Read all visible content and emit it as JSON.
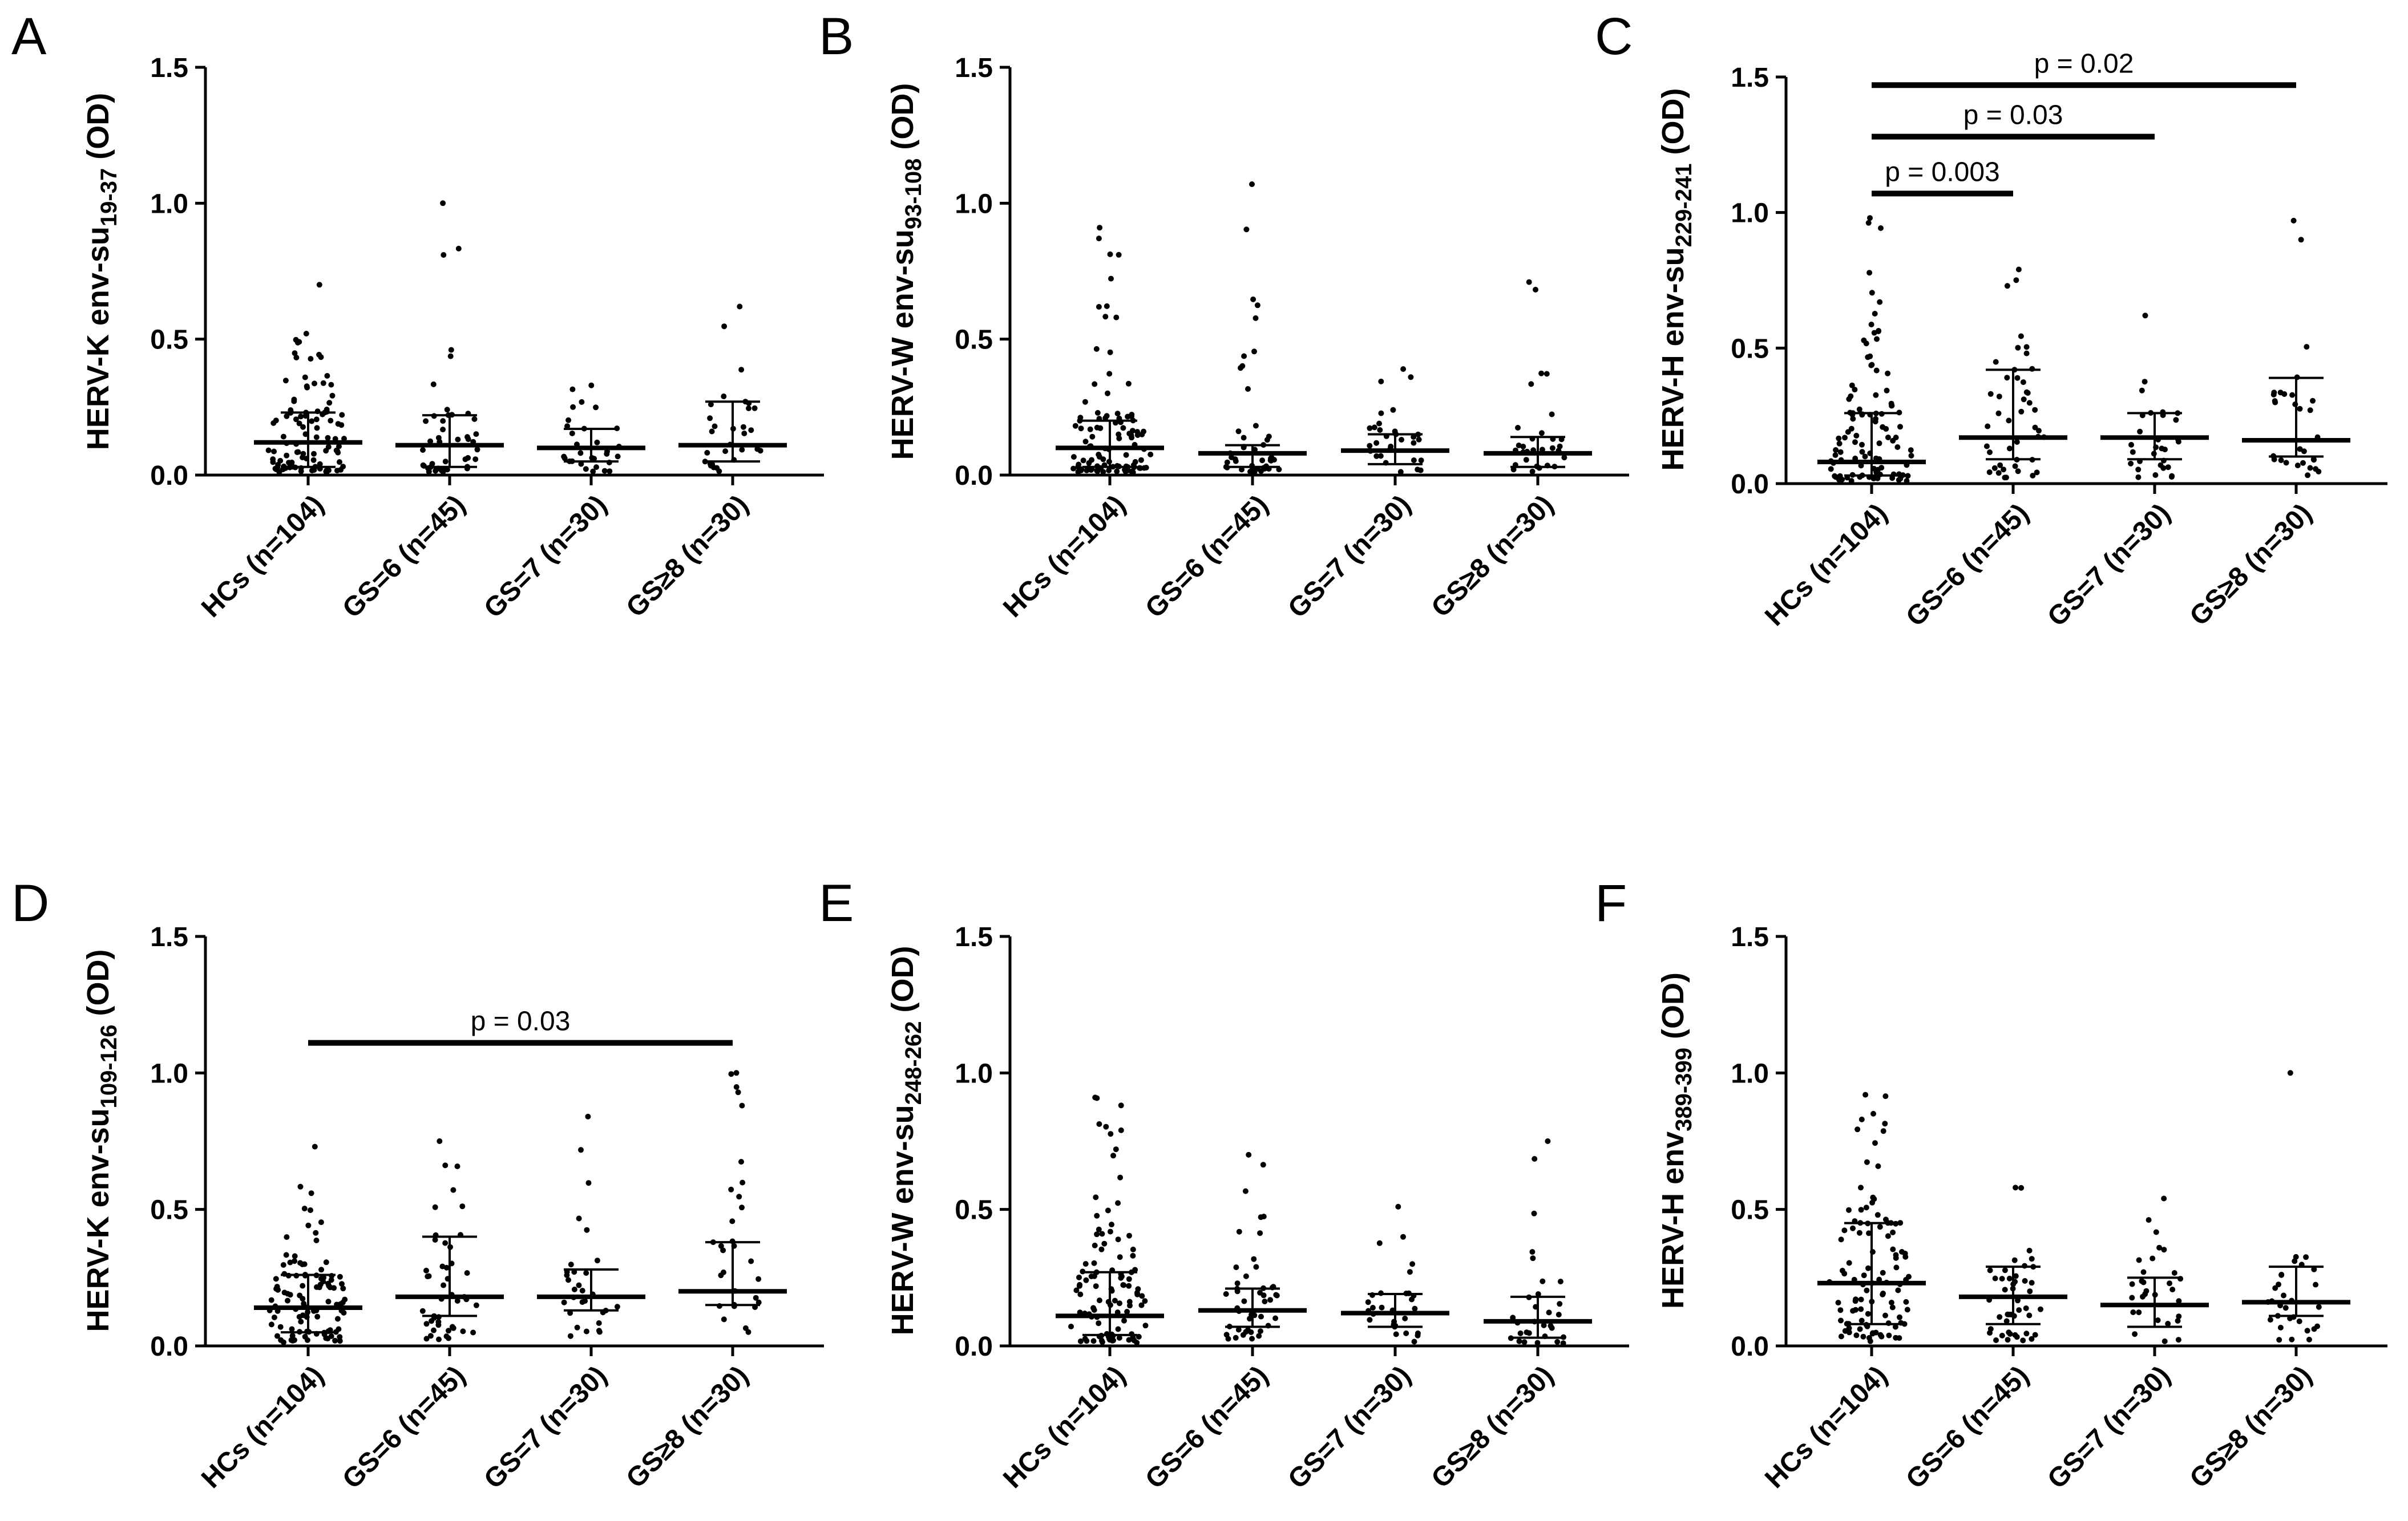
{
  "figure": {
    "background": "#ffffff",
    "ink": "#000000"
  },
  "chart_data": [
    {
      "panel": "A",
      "type": "scatter",
      "ylabel": "HERV-K env-su19-37 (OD)",
      "ylabel_parts": {
        "pre": "HERV-K env-su",
        "sub": "19-37",
        "post": " (OD)"
      },
      "ylim": [
        0,
        1.5
      ],
      "yticks": [
        0.0,
        0.5,
        1.0,
        1.5
      ],
      "ytick_labels": [
        "0.0",
        "0.5",
        "1.0",
        "1.5"
      ],
      "categories": [
        "HCs (n=104)",
        "GS=6 (n=45)",
        "GS=7 (n=30)",
        "GS≥8 (n=30)"
      ],
      "series": [
        {
          "name": "HCs (n=104)",
          "n": 104,
          "median": 0.12,
          "q1": 0.03,
          "q3": 0.23,
          "max": 0.7
        },
        {
          "name": "GS=6 (n=45)",
          "n": 45,
          "median": 0.11,
          "q1": 0.03,
          "q3": 0.22,
          "max": 1.0
        },
        {
          "name": "GS=7 (n=30)",
          "n": 30,
          "median": 0.1,
          "q1": 0.05,
          "q3": 0.17,
          "max": 0.33
        },
        {
          "name": "GS≥8 (n=30)",
          "n": 30,
          "median": 0.11,
          "q1": 0.05,
          "q3": 0.27,
          "max": 0.62
        }
      ],
      "comparisons": []
    },
    {
      "panel": "B",
      "type": "scatter",
      "ylabel": "HERV-W env-su93-108 (OD)",
      "ylabel_parts": {
        "pre": "HERV-W env-su",
        "sub": "93-108",
        "post": " (OD)"
      },
      "ylim": [
        0,
        1.5
      ],
      "yticks": [
        0.0,
        0.5,
        1.0,
        1.5
      ],
      "ytick_labels": [
        "0.0",
        "0.5",
        "1.0",
        "1.5"
      ],
      "categories": [
        "HCs (n=104)",
        "GS=6 (n=45)",
        "GS=7 (n=30)",
        "GS≥8 (n=30)"
      ],
      "series": [
        {
          "name": "HCs (n=104)",
          "n": 104,
          "median": 0.1,
          "q1": 0.03,
          "q3": 0.2,
          "max": 0.91
        },
        {
          "name": "GS=6 (n=45)",
          "n": 45,
          "median": 0.08,
          "q1": 0.03,
          "q3": 0.11,
          "max": 1.07
        },
        {
          "name": "GS=7 (n=30)",
          "n": 30,
          "median": 0.09,
          "q1": 0.04,
          "q3": 0.15,
          "max": 0.39
        },
        {
          "name": "GS≥8 (n=30)",
          "n": 30,
          "median": 0.08,
          "q1": 0.03,
          "q3": 0.14,
          "max": 0.71
        }
      ],
      "comparisons": []
    },
    {
      "panel": "C",
      "type": "scatter",
      "ylabel": "HERV-H env-su229-241 (OD)",
      "ylabel_parts": {
        "pre": "HERV-H env-su",
        "sub": "229-241",
        "post": " (OD)"
      },
      "ylim": [
        0,
        1.5
      ],
      "yticks": [
        0.0,
        0.5,
        1.0,
        1.5
      ],
      "ytick_labels": [
        "0.0",
        "0.5",
        "1.0",
        "1.5"
      ],
      "categories": [
        "HCs (n=104)",
        "GS=6 (n=45)",
        "GS=7 (n=30)",
        "GS≥8 (n=30)"
      ],
      "series": [
        {
          "name": "HCs (n=104)",
          "n": 104,
          "median": 0.08,
          "q1": 0.03,
          "q3": 0.26,
          "max": 0.98
        },
        {
          "name": "GS=6 (n=45)",
          "n": 45,
          "median": 0.17,
          "q1": 0.09,
          "q3": 0.42,
          "max": 0.79
        },
        {
          "name": "GS=7 (n=30)",
          "n": 30,
          "median": 0.17,
          "q1": 0.09,
          "q3": 0.26,
          "max": 0.62
        },
        {
          "name": "GS≥8 (n=30)",
          "n": 30,
          "median": 0.16,
          "q1": 0.1,
          "q3": 0.39,
          "max": 0.97
        }
      ],
      "comparisons": [
        {
          "from": 0,
          "to": 1,
          "y": 1.07,
          "label": "p = 0.003"
        },
        {
          "from": 0,
          "to": 2,
          "y": 1.28,
          "label": "p = 0.03"
        },
        {
          "from": 0,
          "to": 3,
          "y": 1.47,
          "label": "p = 0.02"
        }
      ]
    },
    {
      "panel": "D",
      "type": "scatter",
      "ylabel": "HERV-K env-su109-126 (OD)",
      "ylabel_parts": {
        "pre": "HERV-K env-su",
        "sub": "109-126",
        "post": " (OD)"
      },
      "ylim": [
        0,
        1.5
      ],
      "yticks": [
        0.0,
        0.5,
        1.0,
        1.5
      ],
      "ytick_labels": [
        "0.0",
        "0.5",
        "1.0",
        "1.5"
      ],
      "categories": [
        "HCs (n=104)",
        "GS=6 (n=45)",
        "GS=7 (n=30)",
        "GS≥8 (n=30)"
      ],
      "series": [
        {
          "name": "HCs (n=104)",
          "n": 104,
          "median": 0.14,
          "q1": 0.05,
          "q3": 0.26,
          "max": 0.73
        },
        {
          "name": "GS=6 (n=45)",
          "n": 45,
          "median": 0.18,
          "q1": 0.11,
          "q3": 0.4,
          "max": 0.75
        },
        {
          "name": "GS=7 (n=30)",
          "n": 30,
          "median": 0.18,
          "q1": 0.13,
          "q3": 0.28,
          "max": 0.84
        },
        {
          "name": "GS≥8 (n=30)",
          "n": 30,
          "median": 0.2,
          "q1": 0.15,
          "q3": 0.38,
          "max": 1.0
        }
      ],
      "comparisons": [
        {
          "from": 0,
          "to": 3,
          "y": 1.11,
          "label": "p = 0.03"
        }
      ]
    },
    {
      "panel": "E",
      "type": "scatter",
      "ylabel": "HERV-W env-su248-262 (OD)",
      "ylabel_parts": {
        "pre": "HERV-W env-su",
        "sub": "248-262",
        "post": " (OD)"
      },
      "ylim": [
        0,
        1.5
      ],
      "yticks": [
        0.0,
        0.5,
        1.0,
        1.5
      ],
      "ytick_labels": [
        "0.0",
        "0.5",
        "1.0",
        "1.5"
      ],
      "categories": [
        "HCs (n=104)",
        "GS=6 (n=45)",
        "GS=7 (n=30)",
        "GS≥8 (n=30)"
      ],
      "series": [
        {
          "name": "HCs (n=104)",
          "n": 104,
          "median": 0.11,
          "q1": 0.04,
          "q3": 0.27,
          "max": 0.91
        },
        {
          "name": "GS=6 (n=45)",
          "n": 45,
          "median": 0.13,
          "q1": 0.07,
          "q3": 0.21,
          "max": 0.7
        },
        {
          "name": "GS=7 (n=30)",
          "n": 30,
          "median": 0.12,
          "q1": 0.07,
          "q3": 0.19,
          "max": 0.51
        },
        {
          "name": "GS≥8 (n=30)",
          "n": 30,
          "median": 0.09,
          "q1": 0.03,
          "q3": 0.18,
          "max": 0.75
        }
      ],
      "comparisons": []
    },
    {
      "panel": "F",
      "type": "scatter",
      "ylabel": "HERV-H env389-399 (OD)",
      "ylabel_parts": {
        "pre": "HERV-H env",
        "sub": "389-399",
        "post": " (OD)"
      },
      "ylim": [
        0,
        1.5
      ],
      "yticks": [
        0.0,
        0.5,
        1.0,
        1.5
      ],
      "ytick_labels": [
        "0.0",
        "0.5",
        "1.0",
        "1.5"
      ],
      "categories": [
        "HCs (n=104)",
        "GS=6 (n=45)",
        "GS=7 (n=30)",
        "GS≥8 (n=30)"
      ],
      "series": [
        {
          "name": "HCs (n=104)",
          "n": 104,
          "median": 0.23,
          "q1": 0.08,
          "q3": 0.45,
          "max": 0.92
        },
        {
          "name": "GS=6 (n=45)",
          "n": 45,
          "median": 0.18,
          "q1": 0.08,
          "q3": 0.29,
          "max": 0.58
        },
        {
          "name": "GS=7 (n=30)",
          "n": 30,
          "median": 0.15,
          "q1": 0.07,
          "q3": 0.25,
          "max": 0.54
        },
        {
          "name": "GS≥8 (n=30)",
          "n": 30,
          "median": 0.16,
          "q1": 0.11,
          "q3": 0.29,
          "max": 1.0
        }
      ],
      "comparisons": []
    }
  ]
}
